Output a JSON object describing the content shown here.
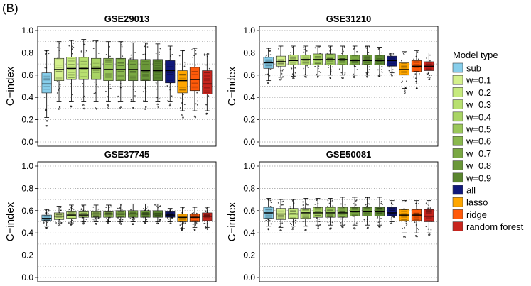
{
  "figure": {
    "panel_label": "(B)"
  },
  "colors": {
    "sub": "#87CEEB",
    "w=0.1": "#D4F08C",
    "w=0.2": "#C6EA7E",
    "w=0.3": "#B8E070",
    "w=0.4": "#A9D465",
    "w=0.5": "#9AC75A",
    "w=0.6": "#8AB84E",
    "w=0.7": "#7AA843",
    "w=0.8": "#6A9739",
    "w=0.9": "#5A862F",
    "all": "#10187A",
    "lasso": "#FFA600",
    "ridge": "#FF5A0A",
    "random forest": "#C8251E"
  },
  "chart_data": [
    {
      "type": "boxplot",
      "title": "GSE29013",
      "ylabel": "C−index",
      "ylim": [
        0.0,
        1.0
      ],
      "yticks": [
        "0.0",
        "0.2",
        "0.4",
        "0.6",
        "0.8",
        "1.0"
      ],
      "grid": true,
      "categories": [
        "sub",
        "w=0.1",
        "w=0.2",
        "w=0.3",
        "w=0.4",
        "w=0.5",
        "w=0.6",
        "w=0.7",
        "w=0.8",
        "w=0.9",
        "all",
        "lasso",
        "ridge",
        "random forest"
      ],
      "series": [
        {
          "name": "sub",
          "min": 0.22,
          "q1": 0.44,
          "median": 0.52,
          "q3": 0.62,
          "max": 0.82
        },
        {
          "name": "w=0.1",
          "min": 0.36,
          "q1": 0.55,
          "median": 0.65,
          "q3": 0.75,
          "max": 0.9
        },
        {
          "name": "w=0.2",
          "min": 0.36,
          "q1": 0.56,
          "median": 0.66,
          "q3": 0.76,
          "max": 0.91
        },
        {
          "name": "w=0.3",
          "min": 0.36,
          "q1": 0.56,
          "median": 0.66,
          "q3": 0.76,
          "max": 0.92
        },
        {
          "name": "w=0.4",
          "min": 0.36,
          "q1": 0.56,
          "median": 0.66,
          "q3": 0.75,
          "max": 0.91
        },
        {
          "name": "w=0.5",
          "min": 0.36,
          "q1": 0.55,
          "median": 0.65,
          "q3": 0.75,
          "max": 0.9
        },
        {
          "name": "w=0.6",
          "min": 0.36,
          "q1": 0.55,
          "median": 0.65,
          "q3": 0.75,
          "max": 0.9
        },
        {
          "name": "w=0.7",
          "min": 0.36,
          "q1": 0.55,
          "median": 0.65,
          "q3": 0.74,
          "max": 0.89
        },
        {
          "name": "w=0.8",
          "min": 0.36,
          "q1": 0.55,
          "median": 0.64,
          "q3": 0.74,
          "max": 0.89
        },
        {
          "name": "w=0.9",
          "min": 0.36,
          "q1": 0.55,
          "median": 0.64,
          "q3": 0.74,
          "max": 0.88
        },
        {
          "name": "all",
          "min": 0.36,
          "q1": 0.53,
          "median": 0.64,
          "q3": 0.73,
          "max": 0.86
        },
        {
          "name": "lasso",
          "min": 0.28,
          "q1": 0.44,
          "median": 0.55,
          "q3": 0.64,
          "max": 0.82
        },
        {
          "name": "ridge",
          "min": 0.28,
          "q1": 0.46,
          "median": 0.56,
          "q3": 0.67,
          "max": 0.84
        },
        {
          "name": "random forest",
          "min": 0.28,
          "q1": 0.43,
          "median": 0.52,
          "q3": 0.64,
          "max": 0.8
        }
      ]
    },
    {
      "type": "boxplot",
      "title": "GSE31210",
      "ylabel": "C−index",
      "ylim": [
        0.0,
        1.0
      ],
      "yticks": [
        "0.0",
        "0.2",
        "0.4",
        "0.6",
        "0.8",
        "1.0"
      ],
      "grid": true,
      "categories": [
        "sub",
        "w=0.1",
        "w=0.2",
        "w=0.3",
        "w=0.4",
        "w=0.5",
        "w=0.6",
        "w=0.7",
        "w=0.8",
        "w=0.9",
        "all",
        "lasso",
        "ridge",
        "random forest"
      ],
      "series": [
        {
          "name": "sub",
          "min": 0.55,
          "q1": 0.66,
          "median": 0.71,
          "q3": 0.76,
          "max": 0.84
        },
        {
          "name": "w=0.1",
          "min": 0.58,
          "q1": 0.68,
          "median": 0.72,
          "q3": 0.77,
          "max": 0.86
        },
        {
          "name": "w=0.2",
          "min": 0.59,
          "q1": 0.69,
          "median": 0.73,
          "q3": 0.78,
          "max": 0.86
        },
        {
          "name": "w=0.3",
          "min": 0.6,
          "q1": 0.69,
          "median": 0.74,
          "q3": 0.78,
          "max": 0.86
        },
        {
          "name": "w=0.4",
          "min": 0.6,
          "q1": 0.69,
          "median": 0.74,
          "q3": 0.79,
          "max": 0.86
        },
        {
          "name": "w=0.5",
          "min": 0.6,
          "q1": 0.69,
          "median": 0.74,
          "q3": 0.79,
          "max": 0.86
        },
        {
          "name": "w=0.6",
          "min": 0.6,
          "q1": 0.69,
          "median": 0.74,
          "q3": 0.78,
          "max": 0.86
        },
        {
          "name": "w=0.7",
          "min": 0.6,
          "q1": 0.69,
          "median": 0.73,
          "q3": 0.78,
          "max": 0.86
        },
        {
          "name": "w=0.8",
          "min": 0.6,
          "q1": 0.69,
          "median": 0.73,
          "q3": 0.78,
          "max": 0.86
        },
        {
          "name": "w=0.9",
          "min": 0.6,
          "q1": 0.69,
          "median": 0.73,
          "q3": 0.78,
          "max": 0.85
        },
        {
          "name": "all",
          "min": 0.62,
          "q1": 0.68,
          "median": 0.73,
          "q3": 0.77,
          "max": 0.8
        },
        {
          "name": "lasso",
          "min": 0.48,
          "q1": 0.6,
          "median": 0.65,
          "q3": 0.71,
          "max": 0.81
        },
        {
          "name": "ridge",
          "min": 0.52,
          "q1": 0.63,
          "median": 0.68,
          "q3": 0.73,
          "max": 0.82
        },
        {
          "name": "random forest",
          "min": 0.58,
          "q1": 0.64,
          "median": 0.68,
          "q3": 0.72,
          "max": 0.8
        }
      ]
    },
    {
      "type": "boxplot",
      "title": "GSE37745",
      "ylabel": "C−index",
      "ylim": [
        0.0,
        1.0
      ],
      "yticks": [
        "0.0",
        "0.2",
        "0.4",
        "0.6",
        "0.8",
        "1.0"
      ],
      "grid": true,
      "categories": [
        "sub",
        "w=0.1",
        "w=0.2",
        "w=0.3",
        "w=0.4",
        "w=0.5",
        "w=0.6",
        "w=0.7",
        "w=0.8",
        "w=0.9",
        "all",
        "lasso",
        "ridge",
        "random forest"
      ],
      "series": [
        {
          "name": "sub",
          "min": 0.46,
          "q1": 0.51,
          "median": 0.53,
          "q3": 0.56,
          "max": 0.61
        },
        {
          "name": "w=0.1",
          "min": 0.48,
          "q1": 0.52,
          "median": 0.55,
          "q3": 0.58,
          "max": 0.64
        },
        {
          "name": "w=0.2",
          "min": 0.49,
          "q1": 0.53,
          "median": 0.56,
          "q3": 0.59,
          "max": 0.65
        },
        {
          "name": "w=0.3",
          "min": 0.5,
          "q1": 0.54,
          "median": 0.56,
          "q3": 0.59,
          "max": 0.65
        },
        {
          "name": "w=0.4",
          "min": 0.5,
          "q1": 0.54,
          "median": 0.57,
          "q3": 0.59,
          "max": 0.65
        },
        {
          "name": "w=0.5",
          "min": 0.5,
          "q1": 0.54,
          "median": 0.57,
          "q3": 0.59,
          "max": 0.65
        },
        {
          "name": "w=0.6",
          "min": 0.5,
          "q1": 0.54,
          "median": 0.57,
          "q3": 0.6,
          "max": 0.66
        },
        {
          "name": "w=0.7",
          "min": 0.5,
          "q1": 0.54,
          "median": 0.57,
          "q3": 0.6,
          "max": 0.66
        },
        {
          "name": "w=0.8",
          "min": 0.5,
          "q1": 0.54,
          "median": 0.57,
          "q3": 0.6,
          "max": 0.66
        },
        {
          "name": "w=0.9",
          "min": 0.5,
          "q1": 0.54,
          "median": 0.57,
          "q3": 0.6,
          "max": 0.66
        },
        {
          "name": "all",
          "min": 0.5,
          "q1": 0.54,
          "median": 0.56,
          "q3": 0.59,
          "max": 0.62
        },
        {
          "name": "lasso",
          "min": 0.44,
          "q1": 0.5,
          "median": 0.54,
          "q3": 0.57,
          "max": 0.63
        },
        {
          "name": "ridge",
          "min": 0.45,
          "q1": 0.5,
          "median": 0.54,
          "q3": 0.57,
          "max": 0.63
        },
        {
          "name": "random forest",
          "min": 0.45,
          "q1": 0.51,
          "median": 0.55,
          "q3": 0.58,
          "max": 0.63
        }
      ]
    },
    {
      "type": "boxplot",
      "title": "GSE50081",
      "ylabel": "C−index",
      "ylim": [
        0.0,
        1.0
      ],
      "yticks": [
        "0.0",
        "0.2",
        "0.4",
        "0.6",
        "0.8",
        "1.0"
      ],
      "grid": true,
      "categories": [
        "sub",
        "w=0.1",
        "w=0.2",
        "w=0.3",
        "w=0.4",
        "w=0.5",
        "w=0.6",
        "w=0.7",
        "w=0.8",
        "w=0.9",
        "all",
        "lasso",
        "ridge",
        "random forest"
      ],
      "series": [
        {
          "name": "sub",
          "min": 0.46,
          "q1": 0.53,
          "median": 0.58,
          "q3": 0.63,
          "max": 0.71
        },
        {
          "name": "w=0.1",
          "min": 0.45,
          "q1": 0.52,
          "median": 0.57,
          "q3": 0.62,
          "max": 0.7
        },
        {
          "name": "w=0.2",
          "min": 0.46,
          "q1": 0.53,
          "median": 0.57,
          "q3": 0.62,
          "max": 0.7
        },
        {
          "name": "w=0.3",
          "min": 0.46,
          "q1": 0.53,
          "median": 0.58,
          "q3": 0.62,
          "max": 0.71
        },
        {
          "name": "w=0.4",
          "min": 0.47,
          "q1": 0.54,
          "median": 0.58,
          "q3": 0.63,
          "max": 0.71
        },
        {
          "name": "w=0.5",
          "min": 0.47,
          "q1": 0.54,
          "median": 0.58,
          "q3": 0.63,
          "max": 0.71
        },
        {
          "name": "w=0.6",
          "min": 0.47,
          "q1": 0.54,
          "median": 0.58,
          "q3": 0.63,
          "max": 0.72
        },
        {
          "name": "w=0.7",
          "min": 0.47,
          "q1": 0.55,
          "median": 0.59,
          "q3": 0.63,
          "max": 0.72
        },
        {
          "name": "w=0.8",
          "min": 0.47,
          "q1": 0.55,
          "median": 0.59,
          "q3": 0.63,
          "max": 0.72
        },
        {
          "name": "w=0.9",
          "min": 0.47,
          "q1": 0.55,
          "median": 0.59,
          "q3": 0.63,
          "max": 0.72
        },
        {
          "name": "all",
          "min": 0.5,
          "q1": 0.55,
          "median": 0.58,
          "q3": 0.63,
          "max": 0.69
        },
        {
          "name": "lasso",
          "min": 0.4,
          "q1": 0.51,
          "median": 0.56,
          "q3": 0.61,
          "max": 0.69
        },
        {
          "name": "ridge",
          "min": 0.4,
          "q1": 0.51,
          "median": 0.56,
          "q3": 0.61,
          "max": 0.69
        },
        {
          "name": "random forest",
          "min": 0.4,
          "q1": 0.5,
          "median": 0.55,
          "q3": 0.61,
          "max": 0.69
        }
      ]
    }
  ],
  "legend": {
    "title": "Model type",
    "items": [
      "sub",
      "w=0.1",
      "w=0.2",
      "w=0.3",
      "w=0.4",
      "w=0.5",
      "w=0.6",
      "w=0.7",
      "w=0.8",
      "w=0.9",
      "all",
      "lasso",
      "ridge",
      "random forest"
    ]
  }
}
